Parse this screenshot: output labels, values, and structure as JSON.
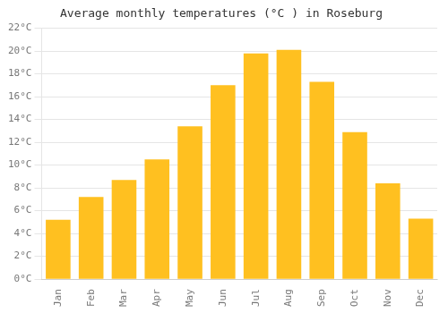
{
  "chart_data": {
    "type": "bar",
    "title": "Average monthly temperatures (°C ) in Roseburg",
    "categories": [
      "Jan",
      "Feb",
      "Mar",
      "Apr",
      "May",
      "Jun",
      "Jul",
      "Aug",
      "Sep",
      "Oct",
      "Nov",
      "Dec"
    ],
    "values": [
      5.2,
      7.2,
      8.7,
      10.5,
      13.4,
      17.0,
      19.8,
      20.1,
      17.3,
      12.9,
      8.4,
      5.3
    ],
    "color": "#FFC020",
    "ylim": [
      0,
      22
    ],
    "yticks": [
      {
        "value": 0,
        "label": "0°C"
      },
      {
        "value": 2,
        "label": "2°C"
      },
      {
        "value": 4,
        "label": "4°C"
      },
      {
        "value": 6,
        "label": "6°C"
      },
      {
        "value": 8,
        "label": "8°C"
      },
      {
        "value": 10,
        "label": "10°C"
      },
      {
        "value": 12,
        "label": "12°C"
      },
      {
        "value": 14,
        "label": "14°C"
      },
      {
        "value": 16,
        "label": "16°C"
      },
      {
        "value": 18,
        "label": "18°C"
      },
      {
        "value": 20,
        "label": "20°C"
      },
      {
        "value": 22,
        "label": "22°C"
      }
    ],
    "grid": true
  }
}
